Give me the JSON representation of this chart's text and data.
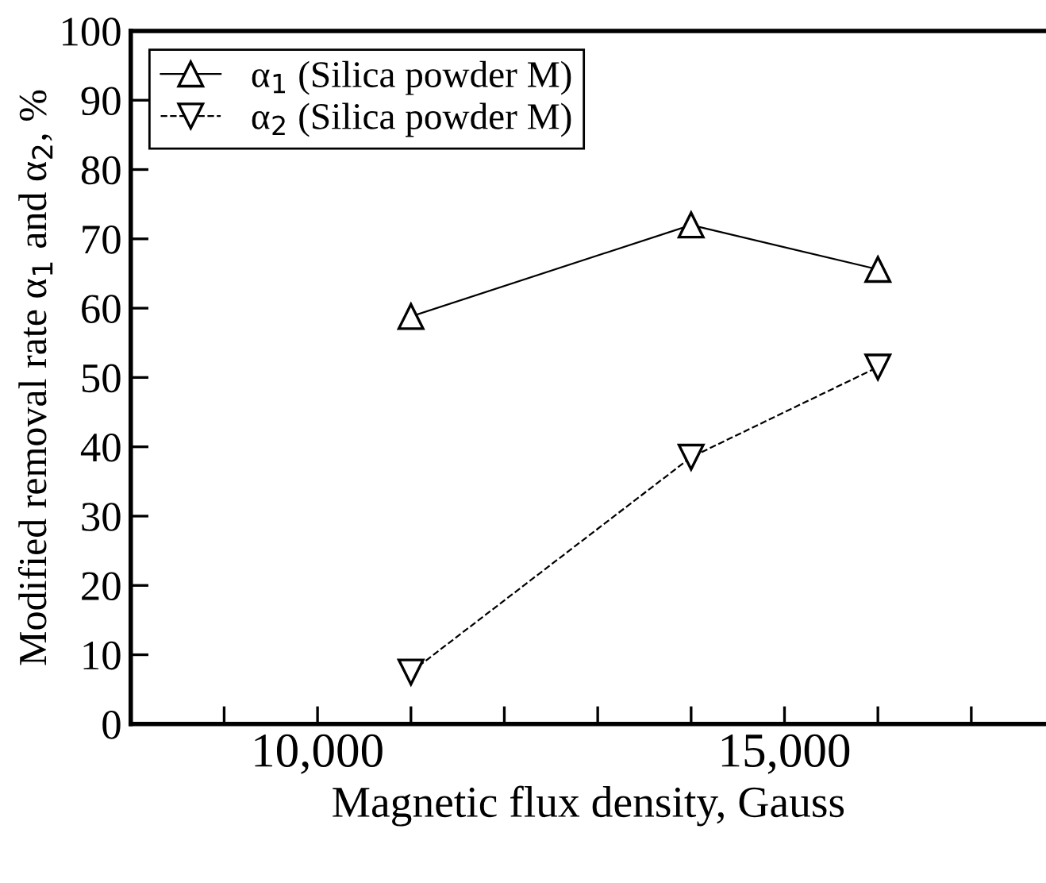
{
  "chart_data": {
    "type": "line",
    "xlabel": "Magnetic flux density, Gauss",
    "ylabel": "Modified removal rate α$_{1}$ and α$_{2}$, %",
    "x": [
      11000,
      14000,
      16000
    ],
    "series": [
      {
        "name": "α$_{1}$ (Silica powder M)",
        "color": "#000000",
        "values": [
          58.8,
          72,
          65.6
        ],
        "marker": "triangle",
        "line_style": "solid"
      },
      {
        "name": "α$_{2}$ (Silica powder M)",
        "color": "#000000",
        "values": [
          7.5,
          38.5,
          51.5
        ],
        "marker": "triangle_down",
        "line_style": "dashed"
      }
    ],
    "xlim": [
      8000,
      17800
    ],
    "ylim": [
      0,
      100
    ],
    "xticks": [
      {
        "value": 9000,
        "label": null
      },
      {
        "value": 10000,
        "label": "10,000"
      },
      {
        "value": 11000,
        "label": null
      },
      {
        "value": 12000,
        "label": null
      },
      {
        "value": 13000,
        "label": null
      },
      {
        "value": 14000,
        "label": null
      },
      {
        "value": 15000,
        "label": "15,000"
      },
      {
        "value": 16000,
        "label": null
      },
      {
        "value": 17000,
        "label": null
      }
    ],
    "yticks": [
      0,
      10,
      20,
      30,
      40,
      50,
      60,
      70,
      80,
      90,
      100
    ],
    "grid": false,
    "legend": "top left"
  }
}
